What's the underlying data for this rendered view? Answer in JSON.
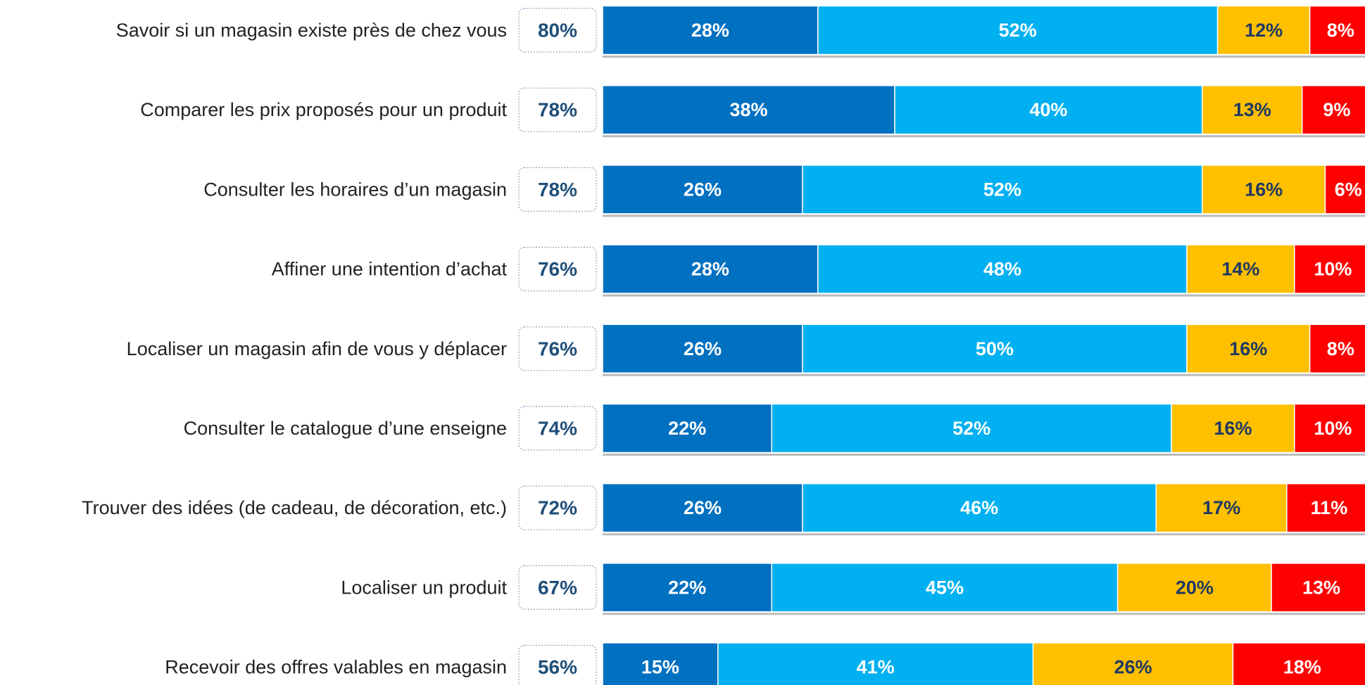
{
  "chart_data": {
    "type": "stacked-barh",
    "categories": [
      "Savoir si un magasin existe près de chez vous",
      "Comparer les prix proposés pour un produit",
      "Consulter les horaires d’un magasin",
      "Affiner une intention d’achat",
      "Localiser un magasin afin de vous y déplacer",
      "Consulter le catalogue d’une enseigne",
      "Trouver des idées (de cadeau, de décoration, etc.)",
      "Localiser un produit",
      "Recevoir des offres valables en magasin"
    ],
    "totals": {
      "values": [
        80,
        78,
        78,
        76,
        76,
        74,
        72,
        67,
        56
      ],
      "value_labels": [
        "80%",
        "78%",
        "78%",
        "76%",
        "76%",
        "74%",
        "72%",
        "67%",
        "56%"
      ]
    },
    "series": [
      {
        "color": "#0070c0",
        "label_color": "#ffffff",
        "values": [
          28,
          38,
          26,
          28,
          26,
          22,
          26,
          22,
          15
        ],
        "value_labels": [
          "28%",
          "38%",
          "26%",
          "28%",
          "26%",
          "22%",
          "26%",
          "22%",
          "15%"
        ]
      },
      {
        "color": "#00b0f0",
        "label_color": "#ffffff",
        "values": [
          52,
          40,
          52,
          48,
          50,
          52,
          46,
          45,
          41
        ],
        "value_labels": [
          "52%",
          "40%",
          "52%",
          "48%",
          "50%",
          "52%",
          "46%",
          "45%",
          "41%"
        ]
      },
      {
        "color": "#ffc000",
        "label_color": "#1f3864",
        "values": [
          12,
          13,
          16,
          14,
          16,
          16,
          17,
          20,
          26
        ],
        "value_labels": [
          "12%",
          "13%",
          "16%",
          "14%",
          "16%",
          "16%",
          "17%",
          "20%",
          "26%"
        ]
      },
      {
        "color": "#ff0000",
        "label_color": "#ffffff",
        "values": [
          8,
          9,
          6,
          10,
          8,
          10,
          11,
          13,
          18
        ],
        "value_labels": [
          "8%",
          "9%",
          "6%",
          "10%",
          "8%",
          "10%",
          "11%",
          "13%",
          "18%"
        ]
      }
    ],
    "xlim": [
      0,
      100
    ]
  }
}
